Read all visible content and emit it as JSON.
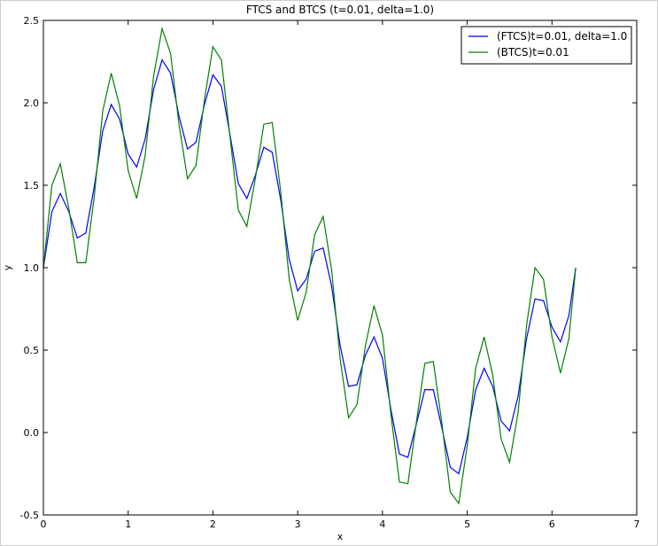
{
  "chart_data": {
    "type": "line",
    "title": "FTCS and BTCS (t=0.01, delta=1.0)",
    "x_label": "x",
    "y_label": "y",
    "x": [
      0.0,
      0.1,
      0.2,
      0.3,
      0.4,
      0.5,
      0.6,
      0.7,
      0.8,
      0.9,
      1.0,
      1.1,
      1.2,
      1.3,
      1.4,
      1.5,
      1.6,
      1.7,
      1.8,
      1.9,
      2.0,
      2.1,
      2.2,
      2.3,
      2.4,
      2.5,
      2.6,
      2.7,
      2.8,
      2.9,
      3.0,
      3.1,
      3.2,
      3.3,
      3.4,
      3.5,
      3.6,
      3.7,
      3.8,
      3.9,
      4.0,
      4.1,
      4.2,
      4.3,
      4.4,
      4.5,
      4.6,
      4.7,
      4.8,
      4.9,
      5.0,
      5.1,
      5.2,
      5.3,
      5.4,
      5.5,
      5.6,
      5.7,
      5.8,
      5.9,
      6.0,
      6.1,
      6.2,
      6.28
    ],
    "series": [
      {
        "name": "(FTCS)t=0.01, delta=1.0",
        "color": "#0000ff",
        "values": [
          1.0,
          1.34,
          1.45,
          1.34,
          1.18,
          1.21,
          1.49,
          1.83,
          1.99,
          1.9,
          1.69,
          1.61,
          1.78,
          2.08,
          2.26,
          2.18,
          1.92,
          1.72,
          1.76,
          1.99,
          2.17,
          2.1,
          1.81,
          1.51,
          1.42,
          1.56,
          1.73,
          1.7,
          1.41,
          1.05,
          0.86,
          0.93,
          1.1,
          1.12,
          0.89,
          0.53,
          0.28,
          0.29,
          0.47,
          0.58,
          0.45,
          0.14,
          -0.13,
          -0.15,
          0.05,
          0.26,
          0.26,
          0.03,
          -0.21,
          -0.25,
          -0.03,
          0.26,
          0.39,
          0.28,
          0.07,
          0.01,
          0.22,
          0.57,
          0.81,
          0.8,
          0.64,
          0.55,
          0.71,
          1.0
        ]
      },
      {
        "name": "(BTCS)t=0.01",
        "color": "#008000",
        "values": [
          1.0,
          1.5,
          1.63,
          1.36,
          1.03,
          1.03,
          1.43,
          1.95,
          2.18,
          1.98,
          1.59,
          1.42,
          1.68,
          2.16,
          2.45,
          2.3,
          1.87,
          1.54,
          1.62,
          2.02,
          2.34,
          2.26,
          1.8,
          1.35,
          1.25,
          1.54,
          1.87,
          1.88,
          1.46,
          0.93,
          0.68,
          0.85,
          1.2,
          1.31,
          0.99,
          0.45,
          0.09,
          0.17,
          0.53,
          0.77,
          0.59,
          0.11,
          -0.3,
          -0.31,
          0.06,
          0.42,
          0.43,
          0.06,
          -0.36,
          -0.43,
          -0.08,
          0.39,
          0.58,
          0.35,
          -0.04,
          -0.18,
          0.12,
          0.65,
          1.0,
          0.93,
          0.58,
          0.36,
          0.57,
          1.0
        ]
      }
    ],
    "xlim": [
      0,
      7
    ],
    "xticks": [
      0,
      1,
      2,
      3,
      4,
      5,
      6,
      7
    ],
    "ylim": [
      -0.5,
      2.5
    ],
    "yticks": [
      -0.5,
      {
        "value": 0,
        "label": "0.0"
      },
      0.5,
      {
        "value": 1,
        "label": "1.0"
      },
      1.5,
      {
        "value": 2,
        "label": "2.0"
      },
      2.5
    ],
    "legend": "upper right",
    "grid": false
  }
}
